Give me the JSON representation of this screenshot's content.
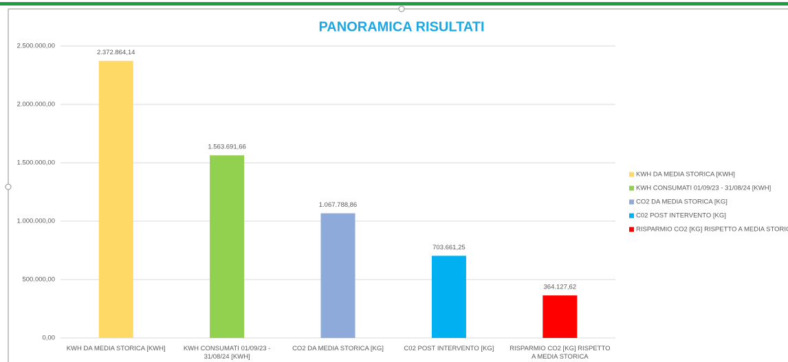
{
  "chart_data": {
    "type": "bar",
    "title": "PANORAMICA RISULTATI",
    "categories": [
      "KWH DA MEDIA STORICA [KWH]",
      "KWH CONSUMATI 01/09/23 - 31/08/24 [KWH]",
      "CO2 DA MEDIA STORICA [KG]",
      "C02 POST INTERVENTO [KG]",
      "RISPARMIO CO2 [KG] RISPETTO A MEDIA STORICA"
    ],
    "values": [
      2372864.14,
      1563691.66,
      1067788.86,
      703661.25,
      364127.62
    ],
    "value_labels": [
      "2.372.864,14",
      "1.563.691,66",
      "1.067.788,86",
      "703.661,25",
      "364.127,62"
    ],
    "colors": [
      "#ffd966",
      "#92d050",
      "#8eaadb",
      "#00b0f0",
      "#ff0000"
    ],
    "ylim": [
      0,
      2500000
    ],
    "yticks": [
      {
        "value": 0,
        "label": "0,00"
      },
      {
        "value": 500000,
        "label": "500.000,00"
      },
      {
        "value": 1000000,
        "label": "1.000.000,00"
      },
      {
        "value": 1500000,
        "label": "1.500.000,00"
      },
      {
        "value": 2000000,
        "label": "2.000.000,00"
      },
      {
        "value": 2500000,
        "label": "2.500.000,00"
      }
    ],
    "grid": true,
    "legend": "right"
  }
}
